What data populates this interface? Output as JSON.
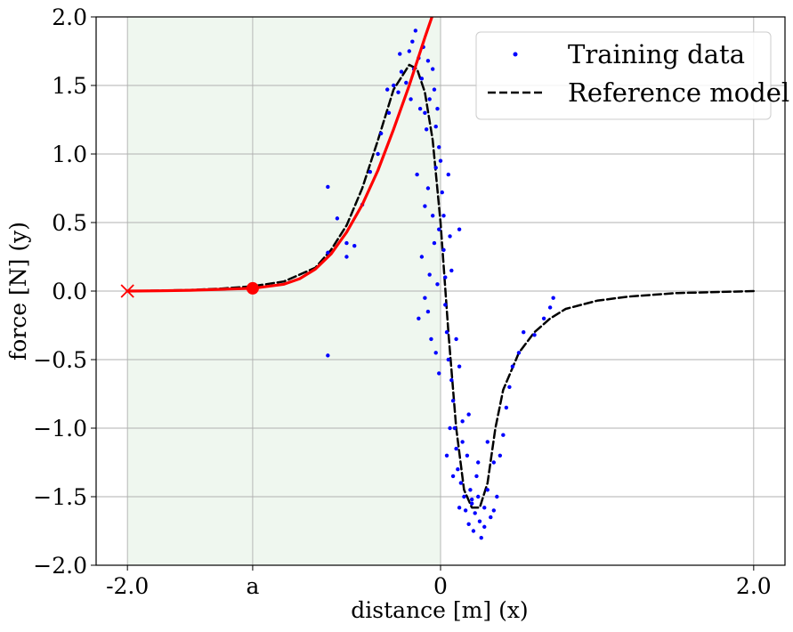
{
  "chart_data": {
    "type": "scatter",
    "xlabel": "distance [m] (x)",
    "ylabel": "force [N] (y)",
    "xlim": [
      -2.2,
      2.2
    ],
    "ylim": [
      -2.0,
      2.0
    ],
    "grid": true,
    "legend_position": "top-right",
    "x_ticks": [
      {
        "value": -2.0,
        "label": "-2.0"
      },
      {
        "value": -1.2,
        "label": "a"
      },
      {
        "value": 0,
        "label": "0"
      },
      {
        "value": 2.0,
        "label": "2.0"
      }
    ],
    "y_ticks": [
      {
        "value": -2.0,
        "label": "−2.0"
      },
      {
        "value": -1.5,
        "label": "−1.5"
      },
      {
        "value": -1.0,
        "label": "−1.0"
      },
      {
        "value": -0.5,
        "label": "−0.5"
      },
      {
        "value": 0.0,
        "label": "0.0"
      },
      {
        "value": 0.5,
        "label": "0.5"
      },
      {
        "value": 1.0,
        "label": "1.0"
      },
      {
        "value": 1.5,
        "label": "1.5"
      },
      {
        "value": 2.0,
        "label": "2.0"
      }
    ],
    "shaded_region": {
      "x": [
        -2.0,
        0.0
      ],
      "color": "#eff7ef"
    },
    "series": [
      {
        "name": "Training data",
        "kind": "scatter",
        "color": "#0000ff",
        "points": [
          [
            -0.72,
            0.76
          ],
          [
            -0.66,
            0.53
          ],
          [
            -0.6,
            0.35
          ],
          [
            -0.55,
            0.33
          ],
          [
            -0.72,
            -0.47
          ],
          [
            -0.72,
            0.28
          ],
          [
            -0.6,
            0.25
          ],
          [
            -0.5,
            0.63
          ],
          [
            -0.45,
            0.87
          ],
          [
            -0.4,
            1.0
          ],
          [
            -0.38,
            1.15
          ],
          [
            -0.33,
            1.3
          ],
          [
            -0.3,
            1.5
          ],
          [
            -0.27,
            1.45
          ],
          [
            -0.25,
            1.6
          ],
          [
            -0.2,
            1.75
          ],
          [
            -0.17,
            1.62
          ],
          [
            -0.14,
            1.7
          ],
          [
            -0.12,
            1.55
          ],
          [
            -0.1,
            1.3
          ],
          [
            -0.07,
            1.4
          ],
          [
            -0.05,
            1.62
          ],
          [
            -0.03,
            1.2
          ],
          [
            -0.01,
            1.05
          ],
          [
            -0.34,
            1.47
          ],
          [
            -0.26,
            1.73
          ],
          [
            -0.18,
            1.82
          ],
          [
            -0.16,
            1.9
          ],
          [
            -0.11,
            1.78
          ],
          [
            -0.08,
            1.68
          ],
          [
            -0.09,
            1.18
          ],
          [
            -0.13,
            1.33
          ],
          [
            -0.19,
            1.4
          ],
          [
            -0.22,
            1.52
          ],
          [
            -0.04,
            1.47
          ],
          [
            -0.02,
            1.33
          ],
          [
            -0.15,
            0.85
          ],
          [
            -0.1,
            0.62
          ],
          [
            -0.08,
            0.75
          ],
          [
            -0.05,
            0.55
          ],
          [
            -0.03,
            0.9
          ],
          [
            -0.01,
            0.45
          ],
          [
            -0.12,
            0.25
          ],
          [
            -0.07,
            0.12
          ],
          [
            -0.04,
            0.35
          ],
          [
            -0.02,
            0.05
          ],
          [
            -0.1,
            -0.05
          ],
          [
            -0.06,
            -0.35
          ],
          [
            -0.14,
            -0.2
          ],
          [
            -0.03,
            -0.45
          ],
          [
            -0.01,
            -0.6
          ],
          [
            -0.08,
            -0.15
          ],
          [
            0.0,
            0.95
          ],
          [
            0.01,
            0.72
          ],
          [
            0.02,
            0.55
          ],
          [
            0.02,
            0.3
          ],
          [
            0.03,
            0.1
          ],
          [
            0.03,
            -0.1
          ],
          [
            0.04,
            -0.3
          ],
          [
            0.05,
            -0.5
          ],
          [
            0.05,
            0.85
          ],
          [
            0.06,
            0.4
          ],
          [
            0.07,
            0.15
          ],
          [
            0.07,
            -0.65
          ],
          [
            0.08,
            -0.8
          ],
          [
            0.09,
            -1.0
          ],
          [
            0.1,
            -0.35
          ],
          [
            0.1,
            -1.15
          ],
          [
            0.11,
            -1.3
          ],
          [
            0.12,
            0.45
          ],
          [
            0.12,
            -0.55
          ],
          [
            0.13,
            -1.4
          ],
          [
            0.14,
            -0.95
          ],
          [
            0.15,
            -1.5
          ],
          [
            0.16,
            -1.6
          ],
          [
            0.17,
            -1.2
          ],
          [
            0.18,
            -1.7
          ],
          [
            0.19,
            -1.45
          ],
          [
            0.2,
            -1.55
          ],
          [
            0.21,
            -1.75
          ],
          [
            0.22,
            -1.62
          ],
          [
            0.23,
            -1.35
          ],
          [
            0.24,
            -1.5
          ],
          [
            0.25,
            -1.68
          ],
          [
            0.26,
            -1.8
          ],
          [
            0.28,
            -1.58
          ],
          [
            0.3,
            -1.45
          ],
          [
            0.32,
            -1.65
          ],
          [
            0.34,
            -1.25
          ],
          [
            0.36,
            -1.5
          ],
          [
            0.38,
            -1.2
          ],
          [
            0.4,
            -1.05
          ],
          [
            0.42,
            -0.85
          ],
          [
            0.44,
            -0.7
          ],
          [
            0.46,
            -0.55
          ],
          [
            0.5,
            -0.45
          ],
          [
            0.53,
            -0.3
          ],
          [
            0.6,
            -0.32
          ],
          [
            0.66,
            -0.2
          ],
          [
            0.7,
            -0.12
          ],
          [
            0.72,
            -0.05
          ],
          [
            0.04,
            -1.2
          ],
          [
            0.06,
            -1.0
          ],
          [
            0.08,
            -1.35
          ],
          [
            0.14,
            -1.1
          ],
          [
            0.18,
            -0.9
          ],
          [
            0.24,
            -1.25
          ],
          [
            0.3,
            -1.1
          ],
          [
            0.28,
            -1.72
          ],
          [
            0.2,
            -1.52
          ],
          [
            0.34,
            -1.6
          ],
          [
            0.12,
            -1.58
          ]
        ]
      },
      {
        "name": "Reference model",
        "kind": "line",
        "color": "#000000",
        "dash": true,
        "points": [
          [
            -2.0,
            0.0
          ],
          [
            -1.8,
            0.003
          ],
          [
            -1.6,
            0.008
          ],
          [
            -1.4,
            0.018
          ],
          [
            -1.2,
            0.035
          ],
          [
            -1.0,
            0.07
          ],
          [
            -0.8,
            0.17
          ],
          [
            -0.7,
            0.3
          ],
          [
            -0.6,
            0.48
          ],
          [
            -0.5,
            0.75
          ],
          [
            -0.4,
            1.1
          ],
          [
            -0.3,
            1.47
          ],
          [
            -0.2,
            1.65
          ],
          [
            -0.15,
            1.62
          ],
          [
            -0.1,
            1.45
          ],
          [
            -0.05,
            1.1
          ],
          [
            0.0,
            0.5
          ],
          [
            0.05,
            -0.3
          ],
          [
            0.1,
            -1.0
          ],
          [
            0.15,
            -1.45
          ],
          [
            0.2,
            -1.58
          ],
          [
            0.25,
            -1.58
          ],
          [
            0.3,
            -1.4
          ],
          [
            0.35,
            -1.0
          ],
          [
            0.4,
            -0.72
          ],
          [
            0.5,
            -0.45
          ],
          [
            0.6,
            -0.3
          ],
          [
            0.7,
            -0.2
          ],
          [
            0.8,
            -0.13
          ],
          [
            1.0,
            -0.07
          ],
          [
            1.2,
            -0.04
          ],
          [
            1.5,
            -0.015
          ],
          [
            2.0,
            0.0
          ]
        ]
      },
      {
        "name": "",
        "kind": "line",
        "color": "#ff0000",
        "dash": false,
        "points": [
          [
            -2.0,
            0.0
          ],
          [
            -1.8,
            0.002
          ],
          [
            -1.6,
            0.006
          ],
          [
            -1.4,
            0.013
          ],
          [
            -1.2,
            0.02
          ],
          [
            -1.0,
            0.05
          ],
          [
            -0.9,
            0.09
          ],
          [
            -0.8,
            0.16
          ],
          [
            -0.7,
            0.27
          ],
          [
            -0.6,
            0.43
          ],
          [
            -0.5,
            0.63
          ],
          [
            -0.4,
            0.88
          ],
          [
            -0.3,
            1.18
          ],
          [
            -0.2,
            1.5
          ],
          [
            -0.1,
            1.85
          ],
          [
            -0.04,
            2.05
          ]
        ]
      }
    ],
    "markers": [
      {
        "name": "start-marker",
        "x": -2.0,
        "y": 0.0,
        "symbol": "x",
        "color": "#ff0000"
      },
      {
        "name": "a-point-marker",
        "x": -1.2,
        "y": 0.02,
        "symbol": "circle",
        "color": "#ff0000"
      }
    ]
  }
}
